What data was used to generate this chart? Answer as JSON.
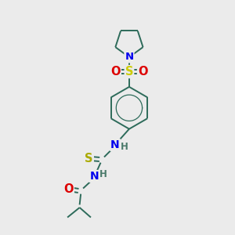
{
  "bg_color": "#ebebeb",
  "bond_color": "#2d6b5a",
  "atom_colors": {
    "N": "#0000ee",
    "O": "#dd0000",
    "S_sulfonyl": "#cccc00",
    "S_thio": "#aaaa00",
    "H": "#4a7a6a",
    "C": "#2d6b5a"
  },
  "lw": 1.4,
  "font_size": 9.5
}
